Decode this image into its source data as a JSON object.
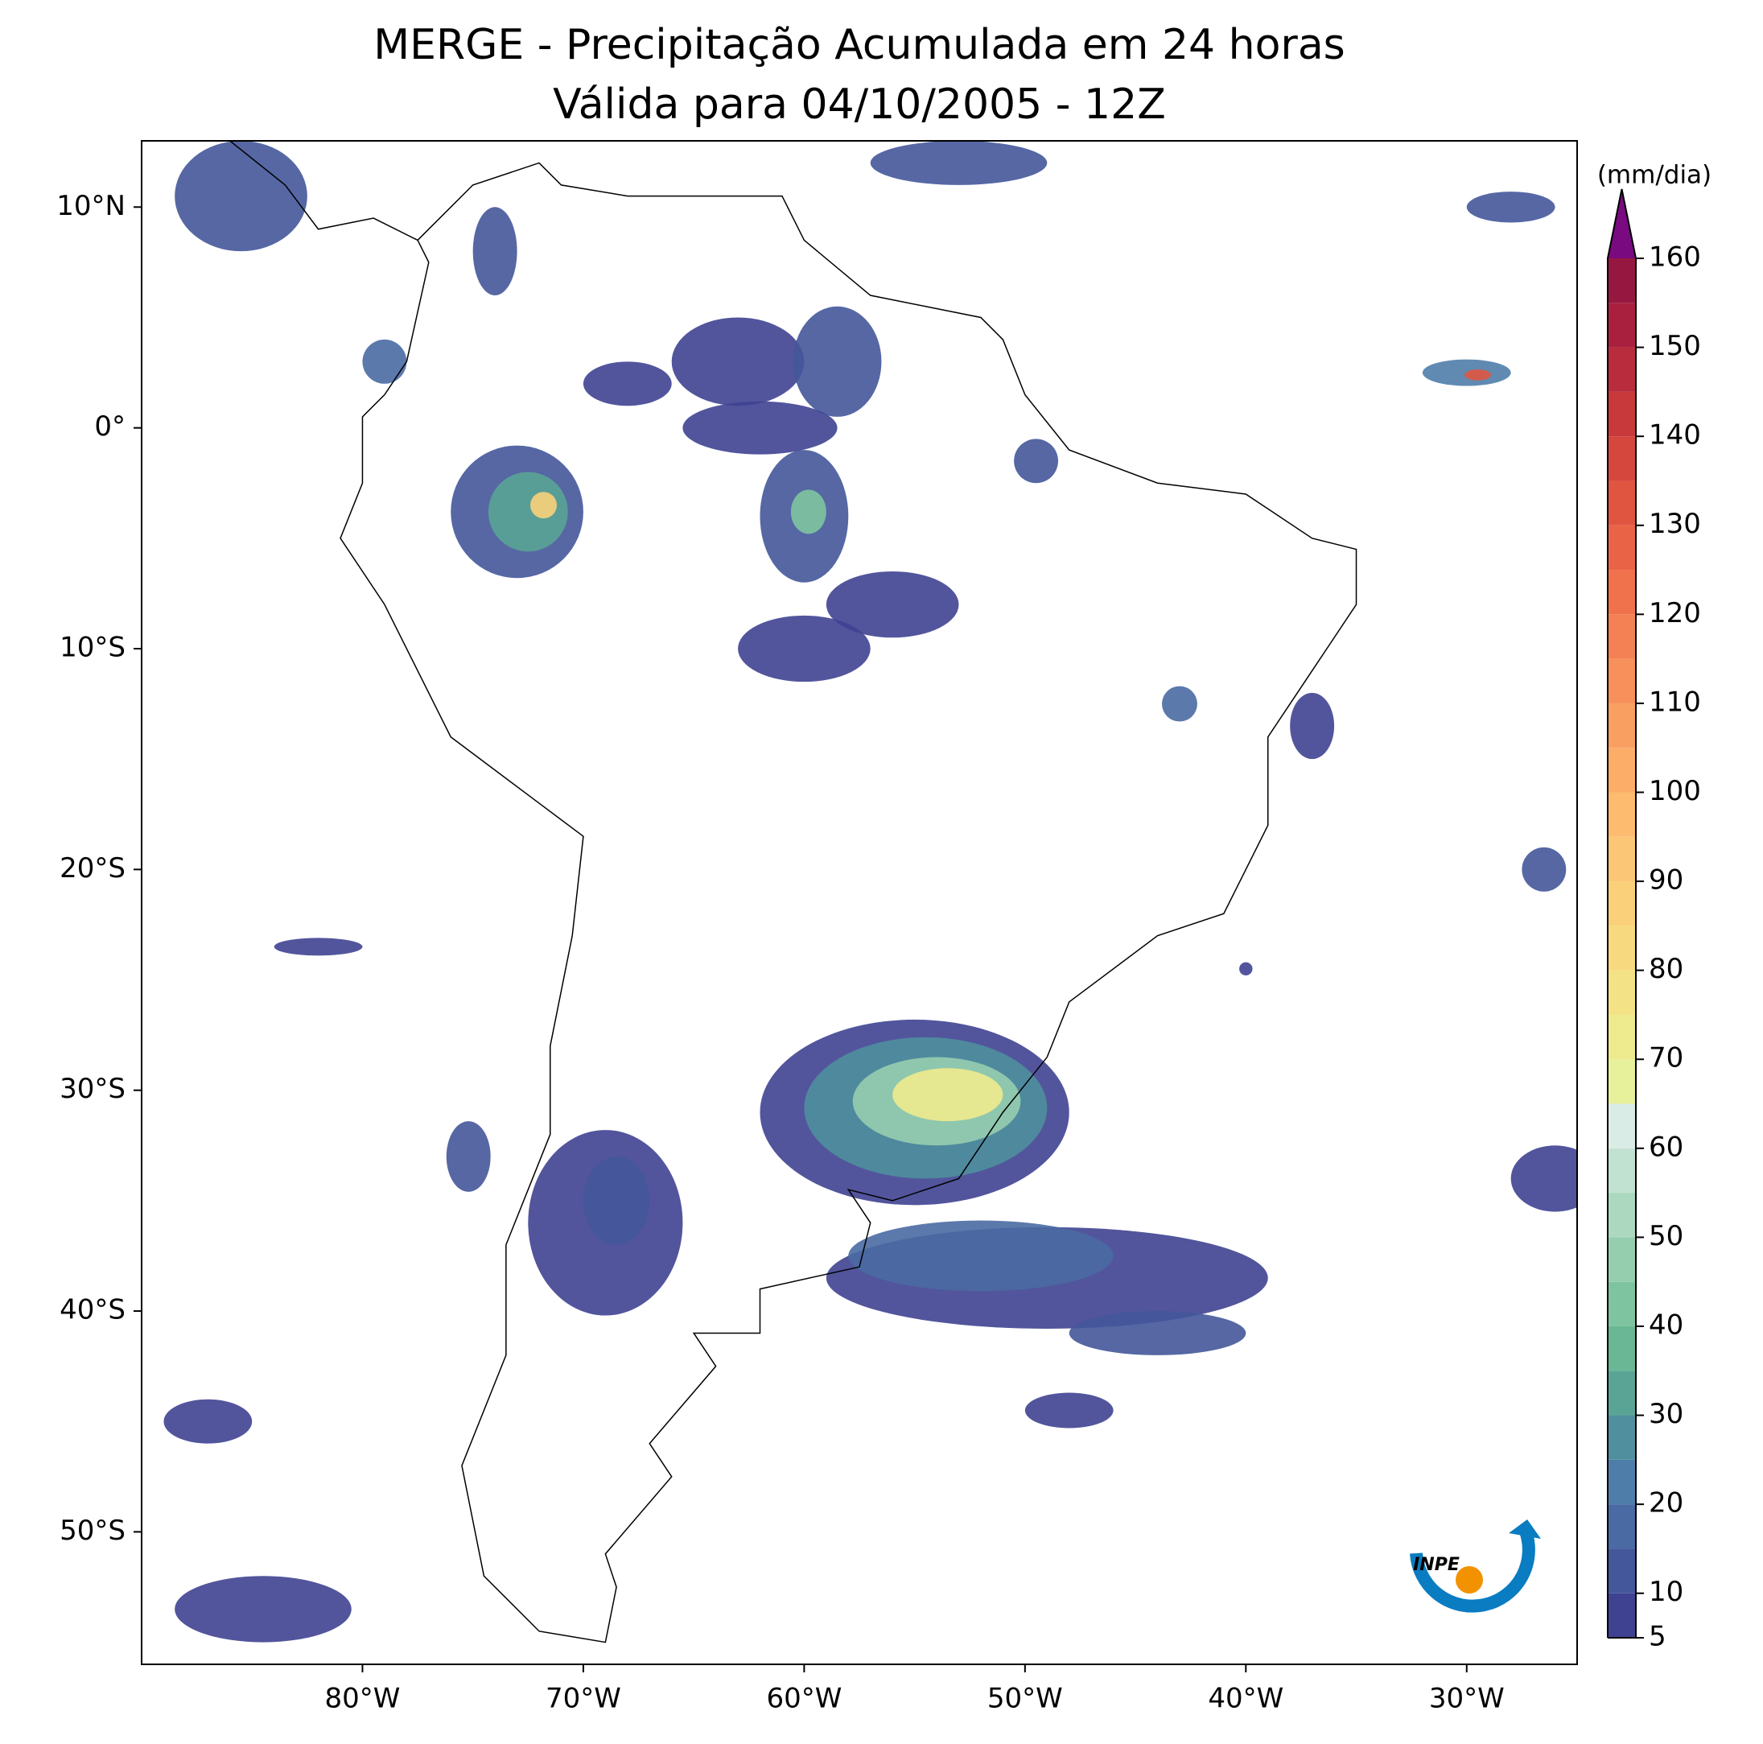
{
  "chart_data": {
    "type": "map",
    "title": "MERGE - Precipitação Acumulada em 24 horas",
    "subtitle": "Válida para 04/10/2005 - 12Z",
    "xlim": [
      -90,
      -25
    ],
    "ylim": [
      -56,
      13
    ],
    "xticks": [
      {
        "value": -80,
        "label": "80°W"
      },
      {
        "value": -70,
        "label": "70°W"
      },
      {
        "value": -60,
        "label": "60°W"
      },
      {
        "value": -50,
        "label": "50°W"
      },
      {
        "value": -40,
        "label": "40°W"
      },
      {
        "value": -30,
        "label": "30°W"
      }
    ],
    "yticks": [
      {
        "value": 10,
        "label": "10°N"
      },
      {
        "value": 0,
        "label": "0°"
      },
      {
        "value": -10,
        "label": "10°S"
      },
      {
        "value": -20,
        "label": "20°S"
      },
      {
        "value": -30,
        "label": "30°S"
      },
      {
        "value": -40,
        "label": "40°S"
      },
      {
        "value": -50,
        "label": "50°S"
      }
    ],
    "colorbar": {
      "label": "(mm/dia)",
      "lim": [
        5,
        160
      ],
      "ticks": [
        5,
        10,
        20,
        30,
        40,
        50,
        60,
        70,
        80,
        90,
        100,
        110,
        120,
        130,
        140,
        150,
        160
      ],
      "levels": [
        5,
        10,
        15,
        20,
        25,
        30,
        35,
        40,
        45,
        50,
        55,
        60,
        65,
        70,
        75,
        80,
        85,
        90,
        95,
        100,
        105,
        110,
        115,
        120,
        125,
        130,
        135,
        140,
        145,
        150,
        155,
        160
      ],
      "colors": [
        "#3f4291",
        "#44579a",
        "#4a6aa3",
        "#4f7daa",
        "#4f8f9e",
        "#5aa495",
        "#6ab796",
        "#7fc4a0",
        "#95ceae",
        "#abd8bf",
        "#c2e2d1",
        "#d9ece5",
        "#e7f09a",
        "#eeea8e",
        "#f3e286",
        "#f7d97f",
        "#fad07a",
        "#fcc677",
        "#fdbb70",
        "#fcad68",
        "#fa9f62",
        "#f7905a",
        "#f48153",
        "#ef724c",
        "#e96446",
        "#e05540",
        "#d5473d",
        "#c8393c",
        "#b92c3d",
        "#a9203f",
        "#961841"
      ],
      "extend_color": "#7a0a80"
    },
    "logo_text": "INPE"
  }
}
